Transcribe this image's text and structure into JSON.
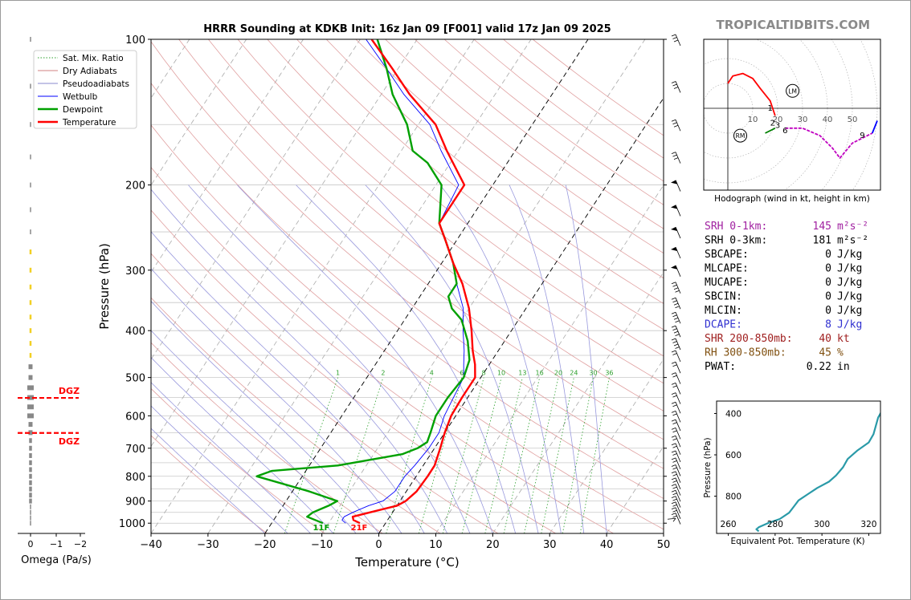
{
  "brand": "TROPICALTIDBITS.COM",
  "chart_data": [
    {
      "type": "line",
      "id": "skewt",
      "title": "HRRR Sounding at KDKB Init: 16z Jan 09 [F001] valid 17z Jan 09 2025",
      "xlabel": "Temperature (°C)",
      "ylabel": "Pressure (hPa)",
      "xlim": [
        -40,
        50
      ],
      "ylim": [
        1050,
        100
      ],
      "yscale": "log",
      "x_ticks": [
        -40,
        -30,
        -20,
        -10,
        0,
        10,
        20,
        30,
        40,
        50
      ],
      "x_tick_labels": [
        "−40",
        "−30",
        "−20",
        "−10",
        "0",
        "10",
        "20",
        "30",
        "40",
        "50"
      ],
      "y_ticks": [
        100,
        200,
        300,
        400,
        500,
        600,
        700,
        800,
        900,
        1000
      ],
      "mixing_ratio_labels": [
        "1",
        "2",
        "4",
        "6",
        "8",
        "10",
        "13",
        "16",
        "20",
        "24",
        "30",
        "36"
      ],
      "legend": {
        "position": "top-left",
        "entries": [
          {
            "label": "Sat. Mix. Ratio",
            "color": "#2ca02c",
            "style": "dotted"
          },
          {
            "label": "Dry Adiabats",
            "color": "#d08080",
            "style": "solid"
          },
          {
            "label": "Pseudoadiabats",
            "color": "#8888cc",
            "style": "solid"
          },
          {
            "label": "Wetbulb",
            "color": "#0000ff",
            "style": "solid"
          },
          {
            "label": "Dewpoint",
            "color": "#00a000",
            "style": "bold"
          },
          {
            "label": "Temperature",
            "color": "#ff0000",
            "style": "bold"
          }
        ]
      },
      "series": [
        {
          "name": "Temperature",
          "color": "#ff0000",
          "points": [
            [
              1000,
              -4.5
            ],
            [
              985,
              -6
            ],
            [
              970,
              -6.5
            ],
            [
              950,
              -4
            ],
            [
              920,
              0
            ],
            [
              900,
              1
            ],
            [
              860,
              1.8
            ],
            [
              800,
              2
            ],
            [
              760,
              2
            ],
            [
              700,
              1
            ],
            [
              650,
              0
            ],
            [
              600,
              -0.8
            ],
            [
              550,
              -1
            ],
            [
              500,
              -1
            ],
            [
              470,
              -2.5
            ],
            [
              440,
              -4.5
            ],
            [
              400,
              -7
            ],
            [
              360,
              -10
            ],
            [
              320,
              -14
            ],
            [
              290,
              -18
            ],
            [
              260,
              -22
            ],
            [
              240,
              -25
            ],
            [
              200,
              -25
            ],
            [
              170,
              -32
            ],
            [
              150,
              -37
            ],
            [
              130,
              -45
            ],
            [
              115,
              -51
            ],
            [
              100,
              -58
            ]
          ]
        },
        {
          "name": "Dewpoint",
          "color": "#00a000",
          "points": [
            [
              1000,
              -11
            ],
            [
              970,
              -14.5
            ],
            [
              950,
              -14
            ],
            [
              920,
              -12
            ],
            [
              900,
              -11
            ],
            [
              860,
              -17
            ],
            [
              800,
              -28
            ],
            [
              780,
              -26
            ],
            [
              760,
              -15
            ],
            [
              720,
              -5
            ],
            [
              700,
              -3
            ],
            [
              680,
              -2
            ],
            [
              650,
              -2.5
            ],
            [
              600,
              -3.5
            ],
            [
              550,
              -3.5
            ],
            [
              500,
              -3
            ],
            [
              460,
              -4
            ],
            [
              420,
              -6.5
            ],
            [
              380,
              -10
            ],
            [
              360,
              -13
            ],
            [
              340,
              -15
            ],
            [
              320,
              -15
            ],
            [
              290,
              -18
            ],
            [
              260,
              -22
            ],
            [
              240,
              -25
            ],
            [
              200,
              -29
            ],
            [
              180,
              -34
            ],
            [
              170,
              -38
            ],
            [
              150,
              -42
            ],
            [
              130,
              -48
            ],
            [
              115,
              -52
            ],
            [
              100,
              -57
            ]
          ]
        },
        {
          "name": "Wetbulb",
          "color": "#0000ff",
          "points": [
            [
              1000,
              -7
            ],
            [
              985,
              -8
            ],
            [
              970,
              -8
            ],
            [
              950,
              -7
            ],
            [
              920,
              -5
            ],
            [
              900,
              -3
            ],
            [
              860,
              -2
            ],
            [
              800,
              -2
            ],
            [
              760,
              -1.5
            ],
            [
              700,
              -1
            ],
            [
              650,
              -1
            ],
            [
              600,
              -2
            ],
            [
              550,
              -2.5
            ],
            [
              500,
              -3
            ],
            [
              470,
              -4.5
            ],
            [
              440,
              -6
            ],
            [
              400,
              -8.5
            ],
            [
              360,
              -11
            ],
            [
              320,
              -15
            ],
            [
              290,
              -18
            ],
            [
              260,
              -22
            ],
            [
              240,
              -25
            ],
            [
              200,
              -26
            ],
            [
              170,
              -33
            ],
            [
              150,
              -38
            ],
            [
              130,
              -46
            ],
            [
              115,
              -52
            ],
            [
              100,
              -59
            ]
          ]
        }
      ],
      "annotations": [
        {
          "text": "11F",
          "color": "#00a000"
        },
        {
          "text": "21F",
          "color": "#ff0000"
        }
      ],
      "wind_barbs_present": true
    },
    {
      "type": "line",
      "id": "hodograph",
      "xlabel": "Hodograph (wind in kt, height in km)",
      "ring_labels": [
        "10",
        "20",
        "30",
        "40",
        "50"
      ],
      "markers": [
        "LM",
        "RM"
      ],
      "height_labels": [
        "1",
        "2",
        "3",
        "6",
        "9"
      ],
      "segments": [
        {
          "color": "#ff0000",
          "points": [
            [
              0,
              10
            ],
            [
              2,
              13
            ],
            [
              6,
              14
            ],
            [
              10,
              12
            ],
            [
              13,
              8
            ],
            [
              17,
              3
            ],
            [
              18,
              0
            ],
            [
              19,
              -3
            ]
          ]
        },
        {
          "color": "#008000",
          "points": [
            [
              15,
              -10
            ],
            [
              19,
              -8
            ]
          ]
        },
        {
          "color": "#c000c0",
          "points": [
            [
              23,
              -8
            ],
            [
              30,
              -8
            ],
            [
              37,
              -11
            ],
            [
              42,
              -16
            ],
            [
              45,
              -20
            ],
            [
              50,
              -14
            ],
            [
              58,
              -10
            ]
          ]
        },
        {
          "color": "#0000ff",
          "points": [
            [
              58,
              -10
            ],
            [
              60,
              -5
            ]
          ]
        }
      ]
    },
    {
      "type": "line",
      "id": "theta_e",
      "xlabel": "Equivalent Pot. Temperature (K)",
      "ylabel": "Pressure (hPa)",
      "xlim": [
        255,
        325
      ],
      "ylim": [
        980,
        340
      ],
      "x_ticks": [
        260,
        280,
        300,
        320
      ],
      "y_ticks": [
        400,
        600,
        800
      ],
      "series": [
        {
          "name": "",
          "color": "#2a9aa8",
          "points": [
            [
              273,
              970
            ],
            [
              272,
              960
            ],
            [
              273,
              950
            ],
            [
              277,
              930
            ],
            [
              282,
              910
            ],
            [
              286,
              880
            ],
            [
              288,
              850
            ],
            [
              290,
              820
            ],
            [
              294,
              790
            ],
            [
              298,
              760
            ],
            [
              303,
              730
            ],
            [
              306,
              700
            ],
            [
              309,
              660
            ],
            [
              311,
              620
            ],
            [
              315,
              580
            ],
            [
              320,
              540
            ],
            [
              322,
              500
            ],
            [
              323,
              460
            ],
            [
              324,
              420
            ],
            [
              326,
              380
            ],
            [
              329,
              340
            ]
          ]
        }
      ]
    },
    {
      "type": "bar",
      "id": "omega",
      "xlabel": "Omega (Pa/s)",
      "x_tick_labels": [
        "0",
        "−1",
        "−2"
      ],
      "dgz_labels": [
        "DGZ",
        "DGZ"
      ]
    }
  ],
  "stats": [
    {
      "label": "SRH 0-1km:",
      "value": "145",
      "unit": "m²s⁻²",
      "color": "#a020a0"
    },
    {
      "label": "SRH 0-3km:",
      "value": "181",
      "unit": "m²s⁻²",
      "color": "#000000"
    },
    {
      "label": "SBCAPE:",
      "value": "0",
      "unit": "J/kg",
      "color": "#000000"
    },
    {
      "label": "MLCAPE:",
      "value": "0",
      "unit": "J/kg",
      "color": "#000000"
    },
    {
      "label": "MUCAPE:",
      "value": "0",
      "unit": "J/kg",
      "color": "#000000"
    },
    {
      "label": "SBCIN:",
      "value": "0",
      "unit": "J/kg",
      "color": "#000000"
    },
    {
      "label": "MLCIN:",
      "value": "0",
      "unit": "J/kg",
      "color": "#000000"
    },
    {
      "label": "DCAPE:",
      "value": "8",
      "unit": "J/kg",
      "color": "#3030d0"
    },
    {
      "label": "SHR 200-850mb:",
      "value": "40",
      "unit": "kt",
      "color": "#a02020"
    },
    {
      "label": "RH 300-850mb:",
      "value": "45",
      "unit": "%",
      "color": "#805010"
    },
    {
      "label": "PWAT:",
      "value": "0.22",
      "unit": "in",
      "color": "#000000"
    }
  ]
}
